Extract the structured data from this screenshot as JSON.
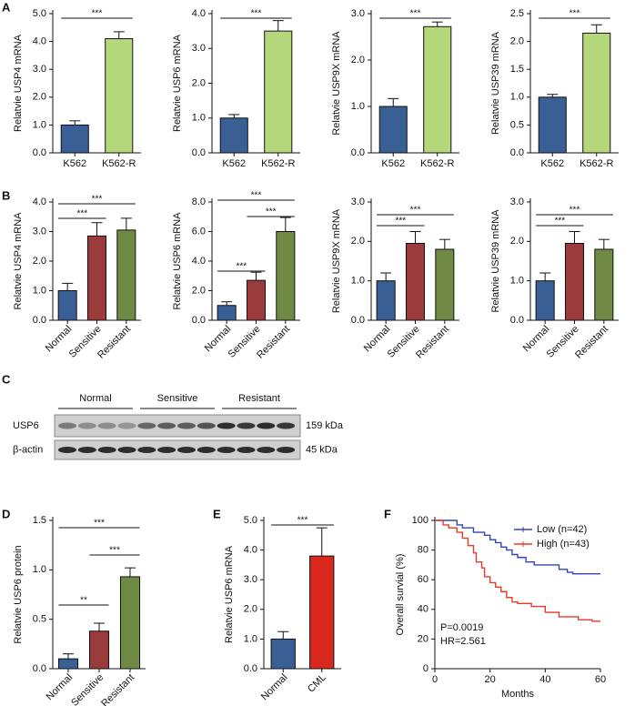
{
  "chart_data": [
    {
      "type": "bar",
      "panel": "A",
      "ylabel": "Relatvie USP4 mRNA",
      "categories": [
        "K562",
        "K562-R"
      ],
      "values": [
        1.0,
        4.1
      ],
      "errors": [
        0.15,
        0.25
      ],
      "colors": [
        "#3a5f95",
        "#b5d77b"
      ],
      "ylim": [
        0,
        5
      ],
      "yticks": [
        {
          "value": 0,
          "label": "0.0"
        },
        {
          "value": 1,
          "label": "1.0"
        },
        {
          "value": 2,
          "label": "2.0"
        },
        {
          "value": 3,
          "label": "3.0"
        },
        {
          "value": 4,
          "label": "4.0"
        },
        {
          "value": 5,
          "label": "5.0"
        }
      ],
      "significance": [
        "***"
      ]
    },
    {
      "type": "bar",
      "ylabel": "Relatvie USP6 mRNA",
      "categories": [
        "K562",
        "K562-R"
      ],
      "values": [
        1.0,
        3.5
      ],
      "errors": [
        0.1,
        0.3
      ],
      "colors": [
        "#3a5f95",
        "#b5d77b"
      ],
      "ylim": [
        0,
        4
      ],
      "yticks": [
        {
          "value": 0,
          "label": "0.0"
        },
        {
          "value": 1,
          "label": "1.0"
        },
        {
          "value": 2,
          "label": "2.0"
        },
        {
          "value": 3,
          "label": "3.0"
        },
        {
          "value": 4,
          "label": "4.0"
        }
      ],
      "significance": [
        "***"
      ]
    },
    {
      "type": "bar",
      "ylabel": "Relatvie USP9X mRNA",
      "categories": [
        "K562",
        "K562-R"
      ],
      "values": [
        1.0,
        2.72
      ],
      "errors": [
        0.17,
        0.1
      ],
      "colors": [
        "#3a5f95",
        "#b5d77b"
      ],
      "ylim": [
        0,
        3
      ],
      "yticks": [
        {
          "value": 0,
          "label": "0.0"
        },
        {
          "value": 1,
          "label": "1.0"
        },
        {
          "value": 2,
          "label": "2.0"
        },
        {
          "value": 3,
          "label": "3.0"
        }
      ],
      "significance": [
        "***"
      ]
    },
    {
      "type": "bar",
      "ylabel": "Relatvie USP39 mRNA",
      "categories": [
        "K562",
        "K562-R"
      ],
      "values": [
        1.0,
        2.15
      ],
      "errors": [
        0.05,
        0.15
      ],
      "colors": [
        "#3a5f95",
        "#b5d77b"
      ],
      "ylim": [
        0,
        2.5
      ],
      "yticks": [
        {
          "value": 0,
          "label": "0.0"
        },
        {
          "value": 0.5,
          "label": "0.5"
        },
        {
          "value": 1,
          "label": "1.0"
        },
        {
          "value": 1.5,
          "label": "1.5"
        },
        {
          "value": 2,
          "label": "2.0"
        },
        {
          "value": 2.5,
          "label": "2.5"
        }
      ],
      "significance": [
        "***"
      ]
    },
    {
      "type": "bar",
      "panel": "B",
      "ylabel": "Relatvie USP4 mRNA",
      "categories": [
        "Normal",
        "Sensitive",
        "Resistant"
      ],
      "values": [
        1.0,
        2.85,
        3.05
      ],
      "errors": [
        0.25,
        0.45,
        0.4
      ],
      "colors": [
        "#3a5f95",
        "#9b3a3a",
        "#6e8a44"
      ],
      "ylim": [
        0,
        4
      ],
      "yticks": [
        {
          "value": 0,
          "label": "0.0"
        },
        {
          "value": 1,
          "label": "1.0"
        },
        {
          "value": 2,
          "label": "2.0"
        },
        {
          "value": 3,
          "label": "3.0"
        },
        {
          "value": 4,
          "label": "4.0"
        }
      ],
      "significance": [
        "***",
        "***"
      ]
    },
    {
      "type": "bar",
      "ylabel": "Relatvie USP6 mRNA",
      "categories": [
        "Normal",
        "Sensitive",
        "Resistant"
      ],
      "values": [
        1.0,
        2.7,
        6.0
      ],
      "errors": [
        0.25,
        0.55,
        0.95
      ],
      "colors": [
        "#3a5f95",
        "#9b3a3a",
        "#6e8a44"
      ],
      "ylim": [
        0,
        8
      ],
      "yticks": [
        {
          "value": 0,
          "label": "0.0"
        },
        {
          "value": 2,
          "label": "2.0"
        },
        {
          "value": 4,
          "label": "4.0"
        },
        {
          "value": 6,
          "label": "6.0"
        },
        {
          "value": 8,
          "label": "8.0"
        }
      ],
      "significance": [
        "***",
        "***",
        "***"
      ]
    },
    {
      "type": "bar",
      "ylabel": "Relatvie USP9X mRNA",
      "categories": [
        "Normal",
        "Sensitive",
        "Resistant"
      ],
      "values": [
        1.0,
        1.95,
        1.8
      ],
      "errors": [
        0.2,
        0.3,
        0.25
      ],
      "colors": [
        "#3a5f95",
        "#9b3a3a",
        "#6e8a44"
      ],
      "ylim": [
        0,
        3
      ],
      "yticks": [
        {
          "value": 0,
          "label": "0.0"
        },
        {
          "value": 1,
          "label": "1.0"
        },
        {
          "value": 2,
          "label": "2.0"
        },
        {
          "value": 3,
          "label": "3.0"
        }
      ],
      "significance": [
        "***",
        "***"
      ]
    },
    {
      "type": "bar",
      "ylabel": "Relatvie USP39 mRNA",
      "categories": [
        "Normal",
        "Sensitive",
        "Resistant"
      ],
      "values": [
        1.0,
        1.95,
        1.8
      ],
      "errors": [
        0.2,
        0.3,
        0.25
      ],
      "colors": [
        "#3a5f95",
        "#9b3a3a",
        "#6e8a44"
      ],
      "ylim": [
        0,
        3
      ],
      "yticks": [
        {
          "value": 0,
          "label": "0.0"
        },
        {
          "value": 1,
          "label": "1.0"
        },
        {
          "value": 2,
          "label": "2.0"
        },
        {
          "value": 3,
          "label": "3.0"
        }
      ],
      "significance": [
        "***",
        "***"
      ]
    },
    {
      "type": "bar",
      "panel": "D",
      "ylabel": "Relatvie USP6 protein",
      "categories": [
        "Normal",
        "Sensitive",
        "Resistant"
      ],
      "values": [
        0.1,
        0.38,
        0.93
      ],
      "errors": [
        0.05,
        0.08,
        0.09
      ],
      "colors": [
        "#3a5f95",
        "#9b3a3a",
        "#6e8a44"
      ],
      "ylim": [
        0,
        1.5
      ],
      "yticks": [
        {
          "value": 0,
          "label": "0.0"
        },
        {
          "value": 0.5,
          "label": "0.5"
        },
        {
          "value": 1,
          "label": "1.0"
        },
        {
          "value": 1.5,
          "label": "1.5"
        }
      ],
      "significance": [
        "**",
        "***",
        "***"
      ]
    },
    {
      "type": "bar",
      "panel": "E",
      "ylabel": "Relatvie USP6 mRNA",
      "categories": [
        "Normal",
        "CML"
      ],
      "values": [
        1.0,
        3.8
      ],
      "errors": [
        0.25,
        0.95
      ],
      "colors": [
        "#3a5f95",
        "#d9291f"
      ],
      "ylim": [
        0,
        5
      ],
      "yticks": [
        {
          "value": 0,
          "label": "0.0"
        },
        {
          "value": 1,
          "label": "1.0"
        },
        {
          "value": 2,
          "label": "2.0"
        },
        {
          "value": 3,
          "label": "3.0"
        },
        {
          "value": 4,
          "label": "4.0"
        },
        {
          "value": 5,
          "label": "5.0"
        }
      ],
      "significance": [
        "***"
      ]
    },
    {
      "type": "survival",
      "panel": "F",
      "xlabel": "Months",
      "ylabel": "Overall survial (%)",
      "xlim": [
        0,
        60
      ],
      "xticks": [
        0,
        20,
        40,
        60
      ],
      "ylim": [
        0,
        100
      ],
      "yticks": [
        0,
        20,
        40,
        60,
        80,
        100
      ],
      "annotations": [
        "P=0.0019",
        "HR=2.561"
      ],
      "series": [
        {
          "name": "Low (n=42)",
          "color": "#3344bb",
          "x": [
            0,
            8,
            10,
            14,
            18,
            20,
            22,
            24,
            26,
            28,
            30,
            33,
            36,
            40,
            45,
            48,
            50,
            60
          ],
          "values": [
            100,
            97,
            95,
            92,
            90,
            87,
            85,
            82,
            80,
            77,
            75,
            72,
            70,
            70,
            67,
            65,
            64,
            64
          ]
        },
        {
          "name": "High (n=43)",
          "color": "#e83a2a",
          "x": [
            0,
            3,
            5,
            8,
            10,
            12,
            14,
            15,
            17,
            18,
            20,
            22,
            24,
            26,
            28,
            30,
            35,
            40,
            45,
            52,
            57,
            60
          ],
          "values": [
            100,
            97,
            95,
            92,
            88,
            83,
            78,
            72,
            68,
            62,
            58,
            55,
            52,
            48,
            45,
            44,
            42,
            38,
            35,
            33,
            32,
            32
          ]
        }
      ]
    }
  ],
  "blot": {
    "panel": "C",
    "groups": [
      "Normal",
      "Sensitive",
      "Resistant"
    ],
    "rows": [
      "USP6",
      "β-actin"
    ],
    "sizes": [
      "159 kDa",
      "45 kDa"
    ]
  }
}
